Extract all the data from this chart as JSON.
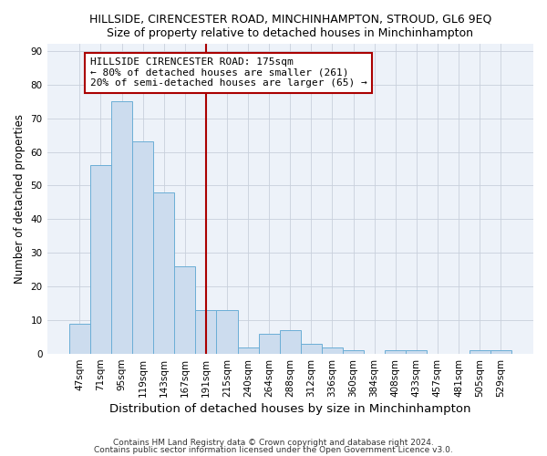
{
  "title": "HILLSIDE, CIRENCESTER ROAD, MINCHINHAMPTON, STROUD, GL6 9EQ",
  "subtitle": "Size of property relative to detached houses in Minchinhampton",
  "xlabel": "Distribution of detached houses by size in Minchinhampton",
  "ylabel": "Number of detached properties",
  "categories": [
    "47sqm",
    "71sqm",
    "95sqm",
    "119sqm",
    "143sqm",
    "167sqm",
    "191sqm",
    "215sqm",
    "240sqm",
    "264sqm",
    "288sqm",
    "312sqm",
    "336sqm",
    "360sqm",
    "384sqm",
    "408sqm",
    "433sqm",
    "457sqm",
    "481sqm",
    "505sqm",
    "529sqm"
  ],
  "values": [
    9,
    56,
    75,
    63,
    48,
    26,
    13,
    13,
    2,
    6,
    7,
    3,
    2,
    1,
    0,
    1,
    1,
    0,
    0,
    1,
    1
  ],
  "bar_color": "#ccdcee",
  "bar_edge_color": "#6baed6",
  "red_line_x": 6.0,
  "red_line_color": "#aa0000",
  "annotation_text": "HILLSIDE CIRENCESTER ROAD: 175sqm\n← 80% of detached houses are smaller (261)\n20% of semi-detached houses are larger (65) →",
  "annotation_box_color": "#ffffff",
  "annotation_box_edge_color": "#aa0000",
  "ylim": [
    0,
    92
  ],
  "yticks": [
    0,
    10,
    20,
    30,
    40,
    50,
    60,
    70,
    80,
    90
  ],
  "footer1": "Contains HM Land Registry data © Crown copyright and database right 2024.",
  "footer2": "Contains public sector information licensed under the Open Government Licence v3.0.",
  "title_fontsize": 9,
  "subtitle_fontsize": 9,
  "xlabel_fontsize": 9.5,
  "ylabel_fontsize": 8.5,
  "tick_fontsize": 7.5,
  "annotation_fontsize": 8,
  "footer_fontsize": 6.5,
  "plot_bg_color": "#edf2f9"
}
